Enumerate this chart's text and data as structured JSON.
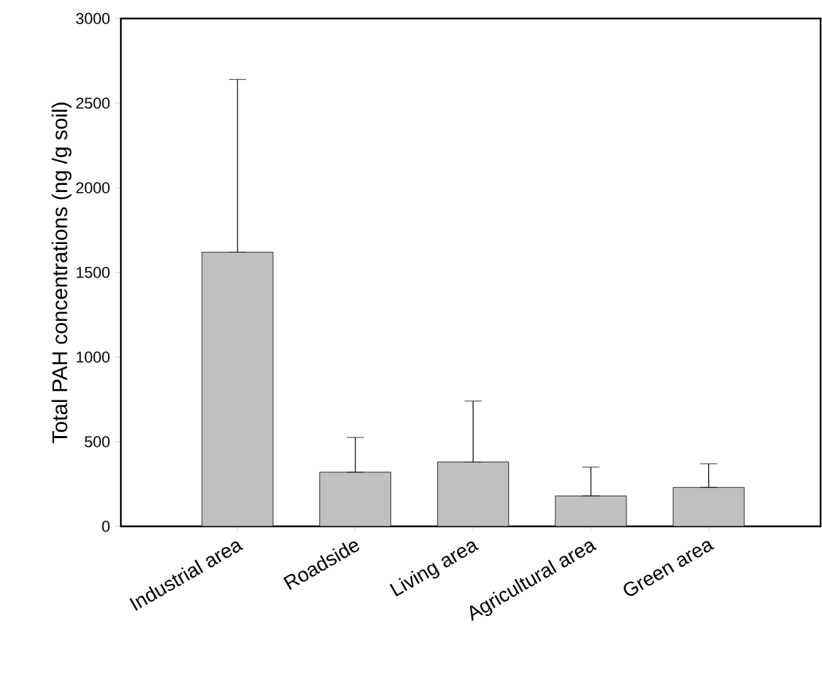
{
  "chart_data": {
    "type": "bar",
    "ylabel": "Total PAH concentrations (ng /g soil)",
    "categories": [
      "Industrial area",
      "Roadside",
      "Living area",
      "Agricultural area",
      "Green area"
    ],
    "values": [
      1620,
      320,
      380,
      180,
      230
    ],
    "errors": [
      [
        1620,
        2640
      ],
      [
        320,
        525
      ],
      [
        380,
        740
      ],
      [
        180,
        350
      ],
      [
        230,
        370
      ]
    ],
    "color": "#c0c0c0",
    "ylim": [
      0,
      3000
    ],
    "yticks": [
      0,
      500,
      1000,
      1500,
      2000,
      2500,
      3000
    ],
    "grid": false
  }
}
